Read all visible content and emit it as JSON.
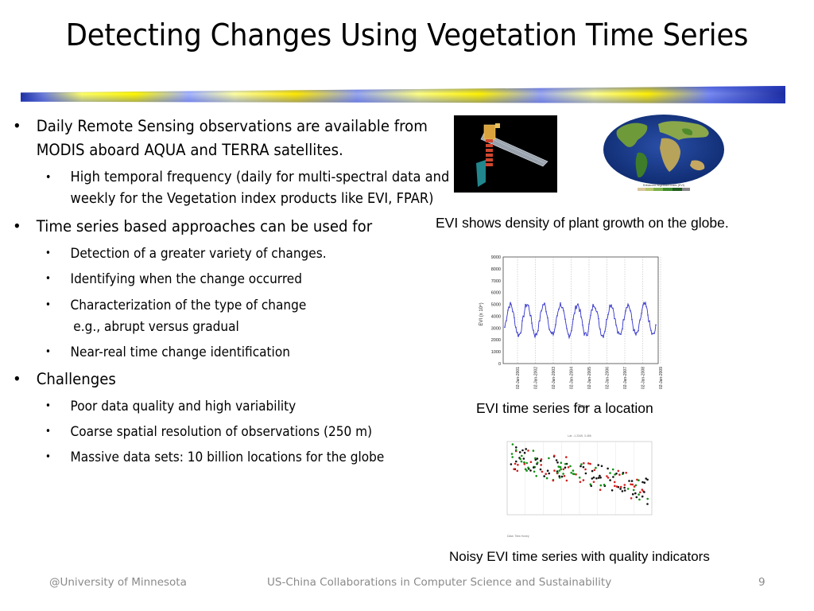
{
  "title": "Detecting Changes Using Vegetation Time Series",
  "bullets": {
    "modis": "Daily Remote Sensing observations are available from MODIS aboard AQUA and TERRA satellites.",
    "temporal": "High temporal frequency (daily for multi-spectral data and bi-weekly for the Vegetation index products like EVI, FPAR)",
    "timeseries": "Time series based approaches can be used for",
    "ts_items": [
      "Detection of a greater variety of changes.",
      "Identifying when the change occurred",
      "Characterization of the type of change",
      "e.g., abrupt versus gradual",
      "Near-real time change identification"
    ],
    "challenges": "Challenges",
    "ch_items": [
      "Poor data quality and  high variability",
      "Coarse spatial resolution of observations (250 m)",
      "Massive data sets: 10 billion locations for the globe"
    ]
  },
  "captions": {
    "globe": "EVI shows density of plant growth on the globe.",
    "timeseries": "EVI time series for a location",
    "noisy": "Noisy EVI time series with quality indicators"
  },
  "globe_legend": "Enhanced Vegetation Index (EVI)",
  "chart1": {
    "y_ticks": [
      "9000",
      "8000",
      "7000",
      "6000",
      "5000",
      "4000",
      "3000",
      "2000",
      "1000",
      "0"
    ],
    "x_ticks": [
      "02-Jan-2001",
      "02-Jan-2002",
      "02-Jan-2003",
      "02-Jan-2004",
      "02-Jan-2005",
      "02-Jan-2006",
      "02-Jan-2007",
      "02-Jan-2008",
      "02-Jan-2009"
    ],
    "ylabel": "EVI (x 10⁴)",
    "xlabel": "Time"
  },
  "chart2": {
    "top_label": "Lat: -1.2345, 3.456",
    "bottom_label": "Data: Tiles Honey"
  },
  "colors": {
    "series": "#3333cc",
    "banner_yellow": "#fff200",
    "banner_blue": "#1a2fa0"
  },
  "footer": {
    "left": "@University of Minnesota",
    "center": "US-China Collaborations in Computer Science and Sustainability",
    "page": "9"
  }
}
